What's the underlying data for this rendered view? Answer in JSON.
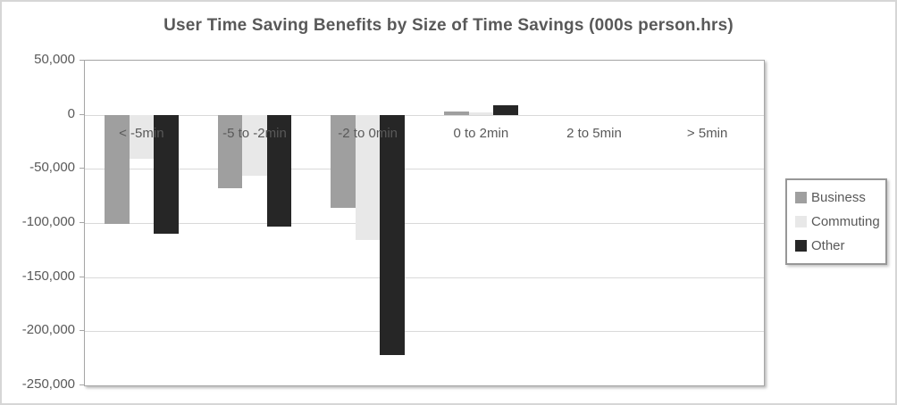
{
  "window": {
    "background": "#ffffff",
    "border_color": "#d6d6d6"
  },
  "chart_data": {
    "type": "bar",
    "title": "User Time Saving Benefits by Size of Time Savings (000s person.hrs)",
    "categories": [
      "< -5min",
      "-5 to -2min",
      "-2 to 0min",
      "0 to 2min",
      "2 to 5min",
      "> 5min"
    ],
    "series": [
      {
        "name": "Business",
        "color": "#9f9f9f",
        "values": [
          -101000,
          -68000,
          -86000,
          3000,
          0,
          0
        ]
      },
      {
        "name": "Commuting",
        "color": "#e8e8e8",
        "values": [
          -41000,
          -56000,
          -116000,
          2000,
          0,
          0
        ]
      },
      {
        "name": "Other",
        "color": "#262626",
        "values": [
          -110000,
          -103000,
          -222000,
          9000,
          0,
          0
        ]
      }
    ],
    "xlabel": "",
    "ylabel": "",
    "ylim": [
      -250000,
      50000
    ],
    "y_ticks": [
      {
        "value": 50000,
        "label": "50,000"
      },
      {
        "value": 0,
        "label": "0"
      },
      {
        "value": -50000,
        "label": "-50,000"
      },
      {
        "value": -100000,
        "label": "-100,000"
      },
      {
        "value": -150000,
        "label": "-150,000"
      },
      {
        "value": -200000,
        "label": "-200,000"
      },
      {
        "value": -250000,
        "label": "-250,000"
      }
    ],
    "grid": "horizontal",
    "legend_position": "right",
    "legend_labels": [
      "Business",
      "Commuting",
      "Other"
    ]
  },
  "style_colors": {
    "gridline": "#d9d9d9",
    "plot_border": "#a6a6a6",
    "title_text": "#595959",
    "axis_text": "#595959"
  }
}
